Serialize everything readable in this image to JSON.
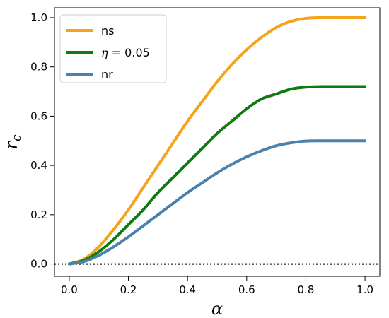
{
  "chart_data": {
    "type": "line",
    "xlabel": "α",
    "ylabel_main": "r",
    "ylabel_sub": "c",
    "xlim": [
      -0.05,
      1.05
    ],
    "ylim": [
      -0.05,
      1.04
    ],
    "xticks": [
      0.0,
      0.2,
      0.4,
      0.6,
      0.8,
      1.0
    ],
    "xtick_labels": [
      "0.0",
      "0.2",
      "0.4",
      "0.6",
      "0.8",
      "1.0"
    ],
    "yticks": [
      0.0,
      0.2,
      0.4,
      0.6,
      0.8,
      1.0
    ],
    "ytick_labels": [
      "0.0",
      "0.2",
      "0.4",
      "0.6",
      "0.8",
      "1.0"
    ],
    "grid": false,
    "legend_position": "top-left",
    "reference_line": {
      "y": 0.0,
      "style": "dotted",
      "color": "#000000"
    },
    "x": [
      0.0,
      0.05,
      0.1,
      0.15,
      0.2,
      0.25,
      0.3,
      0.35,
      0.4,
      0.45,
      0.5,
      0.55,
      0.6,
      0.65,
      0.7,
      0.75,
      0.8,
      0.85,
      0.9,
      0.95,
      1.0
    ],
    "series": [
      {
        "name": "ns",
        "legend_prefix": "",
        "legend_suffix": "ns",
        "color": "#f5a31a",
        "values": [
          0.0,
          0.02,
          0.07,
          0.14,
          0.22,
          0.31,
          0.4,
          0.49,
          0.58,
          0.66,
          0.74,
          0.81,
          0.87,
          0.92,
          0.96,
          0.985,
          0.997,
          1.0,
          1.0,
          1.0,
          1.0
        ]
      },
      {
        "name": "η = 0.05",
        "legend_prefix": "η",
        "legend_suffix": " = 0.05",
        "color": "#0f7a0f",
        "values": [
          0.0,
          0.015,
          0.05,
          0.1,
          0.16,
          0.22,
          0.29,
          0.35,
          0.41,
          0.47,
          0.53,
          0.58,
          0.63,
          0.67,
          0.69,
          0.71,
          0.718,
          0.72,
          0.72,
          0.72,
          0.72
        ]
      },
      {
        "name": "nr",
        "legend_prefix": "",
        "legend_suffix": "nr",
        "color": "#4a81ad",
        "values": [
          0.0,
          0.01,
          0.035,
          0.07,
          0.11,
          0.155,
          0.2,
          0.245,
          0.29,
          0.33,
          0.37,
          0.405,
          0.435,
          0.46,
          0.48,
          0.492,
          0.499,
          0.5,
          0.5,
          0.5,
          0.5
        ]
      }
    ]
  }
}
